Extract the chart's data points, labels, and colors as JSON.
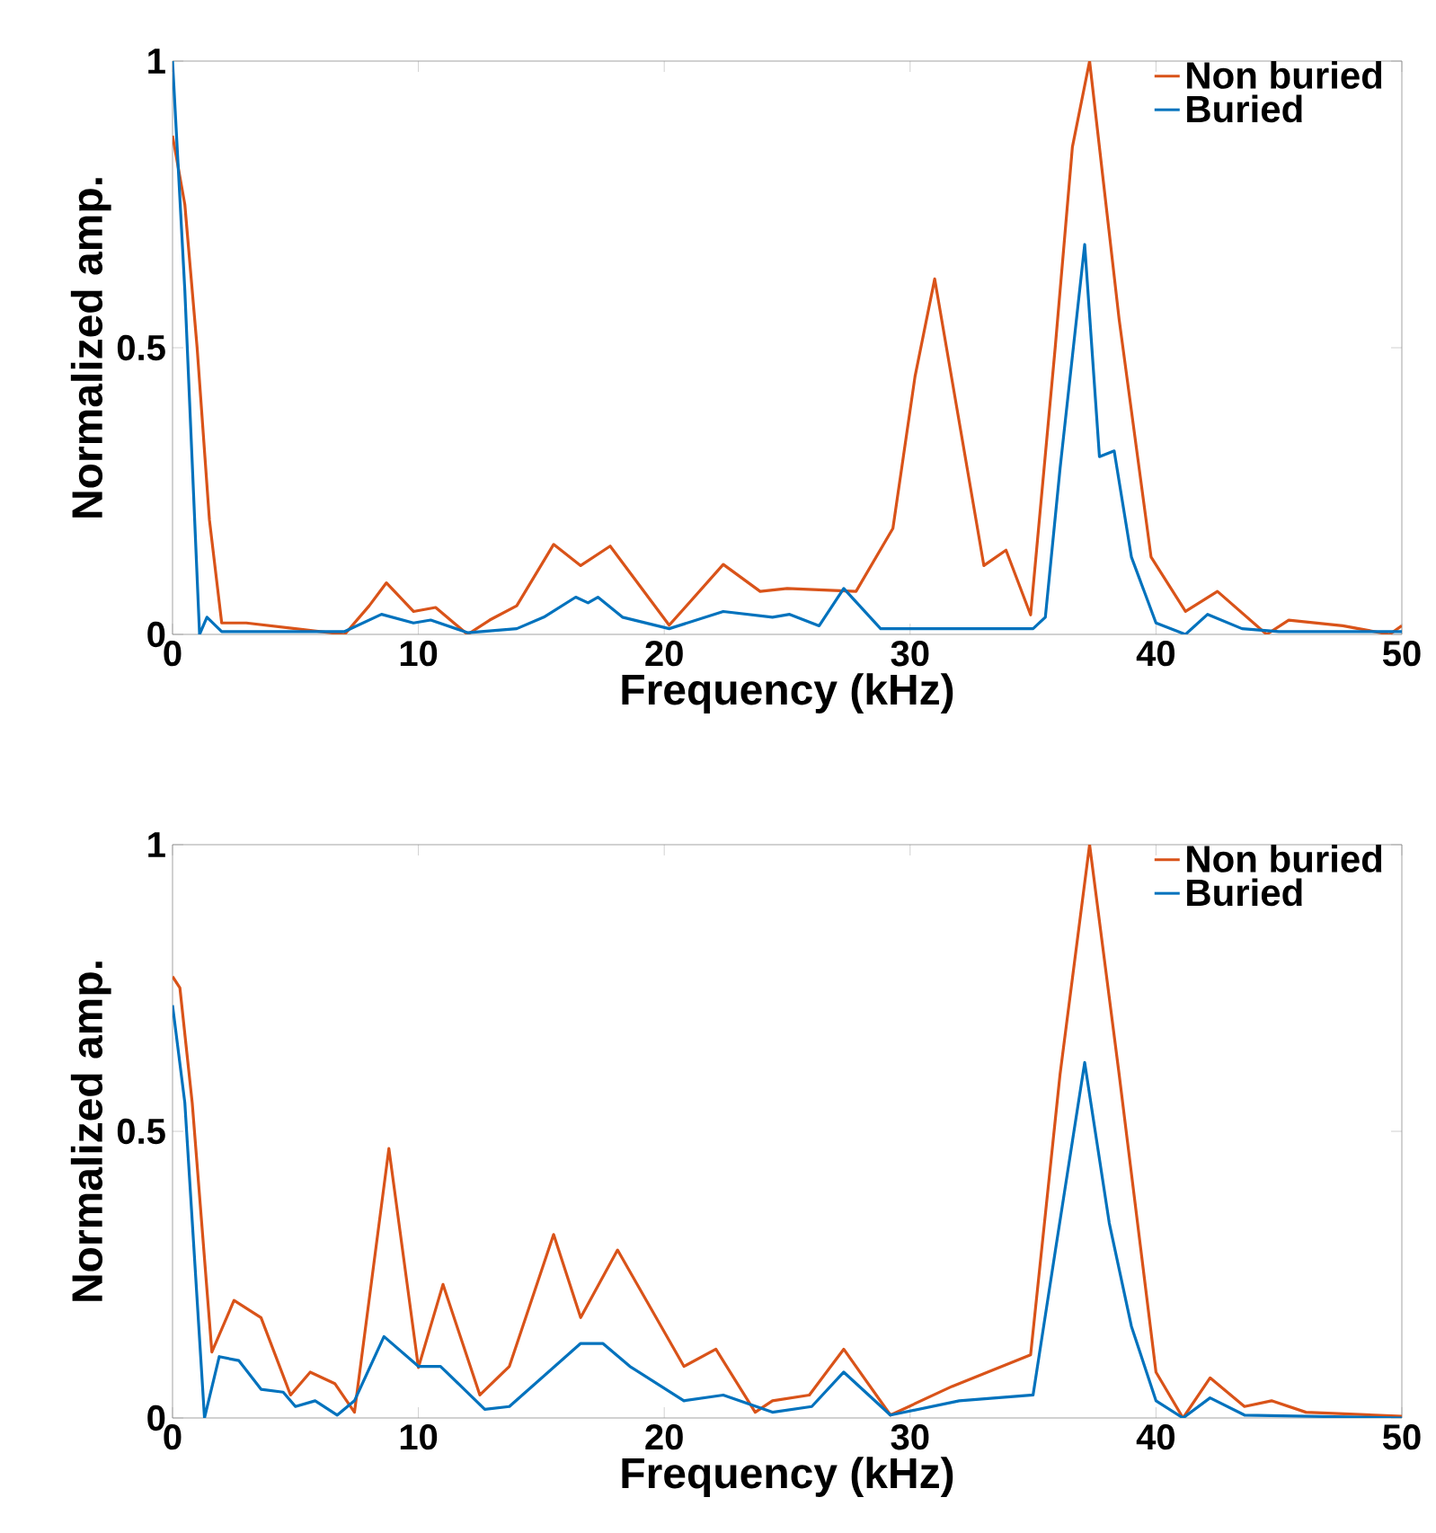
{
  "chart_data": [
    {
      "type": "line",
      "xlabel": "Frequency (kHz)",
      "ylabel": "Normalized amp.",
      "xlim": [
        0,
        50
      ],
      "ylim": [
        0,
        1
      ],
      "xticks": [
        0,
        10,
        20,
        30,
        40,
        50
      ],
      "yticks": [
        0,
        0.5,
        1
      ],
      "legend": "top right",
      "grid": false,
      "line_style": "solid",
      "series": [
        {
          "name": "Non buried",
          "color": "#d95319",
          "x": [
            0,
            0.5,
            1,
            1.5,
            2,
            3,
            5,
            7,
            8,
            8.7,
            9.8,
            10.7,
            12.0,
            12.9,
            14,
            15.5,
            16.6,
            17.8,
            20.2,
            22.4,
            23.9,
            25,
            27.8,
            29.3,
            30.2,
            31.0,
            31.9,
            33.0,
            33.9,
            34.9,
            35.9,
            36.6,
            37.3,
            38.5,
            39.8,
            41.2,
            42.5,
            44.5,
            45.4,
            47.6,
            49.5,
            50
          ],
          "values": [
            0.87,
            0.75,
            0.5,
            0.2,
            0.02,
            0.02,
            0.01,
            0.0,
            0.05,
            0.09,
            0.04,
            0.047,
            0.0,
            0.025,
            0.05,
            0.157,
            0.12,
            0.154,
            0.016,
            0.122,
            0.075,
            0.08,
            0.075,
            0.185,
            0.45,
            0.62,
            0.395,
            0.12,
            0.147,
            0.034,
            0.5,
            0.85,
            1.0,
            0.55,
            0.135,
            0.04,
            0.075,
            0.0,
            0.025,
            0.015,
            0.0,
            0.015
          ]
        },
        {
          "name": "Buried",
          "color": "#0072bd",
          "x": [
            0,
            0.5,
            1.1,
            1.4,
            2,
            7,
            8.5,
            9.8,
            10.5,
            12,
            14,
            15.1,
            16.4,
            16.9,
            17.3,
            18.3,
            20.2,
            22.4,
            24.4,
            25.1,
            26.3,
            27.3,
            28.8,
            30,
            35,
            35.5,
            36.1,
            37.1,
            37.7,
            38.3,
            39.0,
            40.0,
            41.2,
            42.1,
            43.5,
            45,
            50
          ],
          "values": [
            1.0,
            0.6,
            0.0,
            0.03,
            0.005,
            0.005,
            0.035,
            0.02,
            0.025,
            0.003,
            0.01,
            0.03,
            0.065,
            0.055,
            0.065,
            0.03,
            0.01,
            0.04,
            0.03,
            0.035,
            0.015,
            0.08,
            0.01,
            0.01,
            0.01,
            0.03,
            0.29,
            0.68,
            0.31,
            0.32,
            0.135,
            0.02,
            0.0,
            0.035,
            0.01,
            0.005,
            0.005
          ]
        }
      ]
    },
    {
      "type": "line",
      "xlabel": "Frequency (kHz)",
      "ylabel": "Normalized amp.",
      "xlim": [
        0,
        50
      ],
      "ylim": [
        0,
        1
      ],
      "xticks": [
        0,
        10,
        20,
        30,
        40,
        50
      ],
      "yticks": [
        0,
        0.5,
        1
      ],
      "legend": "top right",
      "grid": false,
      "line_style": "solid",
      "series": [
        {
          "name": "Non buried",
          "color": "#d95319",
          "x": [
            0,
            0.3,
            0.8,
            1.6,
            2.5,
            3.6,
            4.8,
            5.6,
            6.6,
            7.4,
            8.8,
            10.0,
            11.0,
            12.5,
            13.7,
            15.5,
            16.6,
            18.1,
            20.8,
            22.1,
            23.7,
            24.4,
            25.9,
            27.3,
            29.2,
            31.7,
            34.9,
            36.1,
            37.3,
            38.5,
            40.0,
            41.1,
            42.2,
            43.6,
            44.7,
            46.1,
            50
          ],
          "values": [
            0.77,
            0.75,
            0.55,
            0.115,
            0.205,
            0.175,
            0.04,
            0.08,
            0.06,
            0.01,
            0.47,
            0.088,
            0.233,
            0.04,
            0.09,
            0.32,
            0.175,
            0.293,
            0.09,
            0.12,
            0.01,
            0.03,
            0.04,
            0.12,
            0.005,
            0.055,
            0.11,
            0.6,
            1.0,
            0.6,
            0.08,
            0.0,
            0.07,
            0.02,
            0.03,
            0.01,
            0.003
          ]
        },
        {
          "name": "Buried",
          "color": "#0072bd",
          "x": [
            0,
            0.5,
            1.3,
            1.9,
            2.7,
            3.6,
            4.5,
            5.0,
            5.8,
            6.7,
            7.4,
            8.6,
            10.0,
            10.9,
            12.7,
            13.7,
            16.6,
            17.5,
            18.6,
            20.8,
            22.4,
            24.4,
            26,
            27.3,
            29.2,
            32,
            35,
            35.9,
            37.1,
            38.1,
            39.0,
            40.0,
            41.1,
            42.2,
            43.6,
            50
          ],
          "values": [
            0.72,
            0.55,
            0.0,
            0.107,
            0.1,
            0.05,
            0.045,
            0.02,
            0.03,
            0.005,
            0.03,
            0.142,
            0.09,
            0.09,
            0.015,
            0.02,
            0.13,
            0.13,
            0.09,
            0.03,
            0.04,
            0.01,
            0.02,
            0.08,
            0.005,
            0.03,
            0.04,
            0.29,
            0.62,
            0.34,
            0.16,
            0.03,
            0.0,
            0.035,
            0.005,
            0.0
          ]
        }
      ]
    }
  ]
}
